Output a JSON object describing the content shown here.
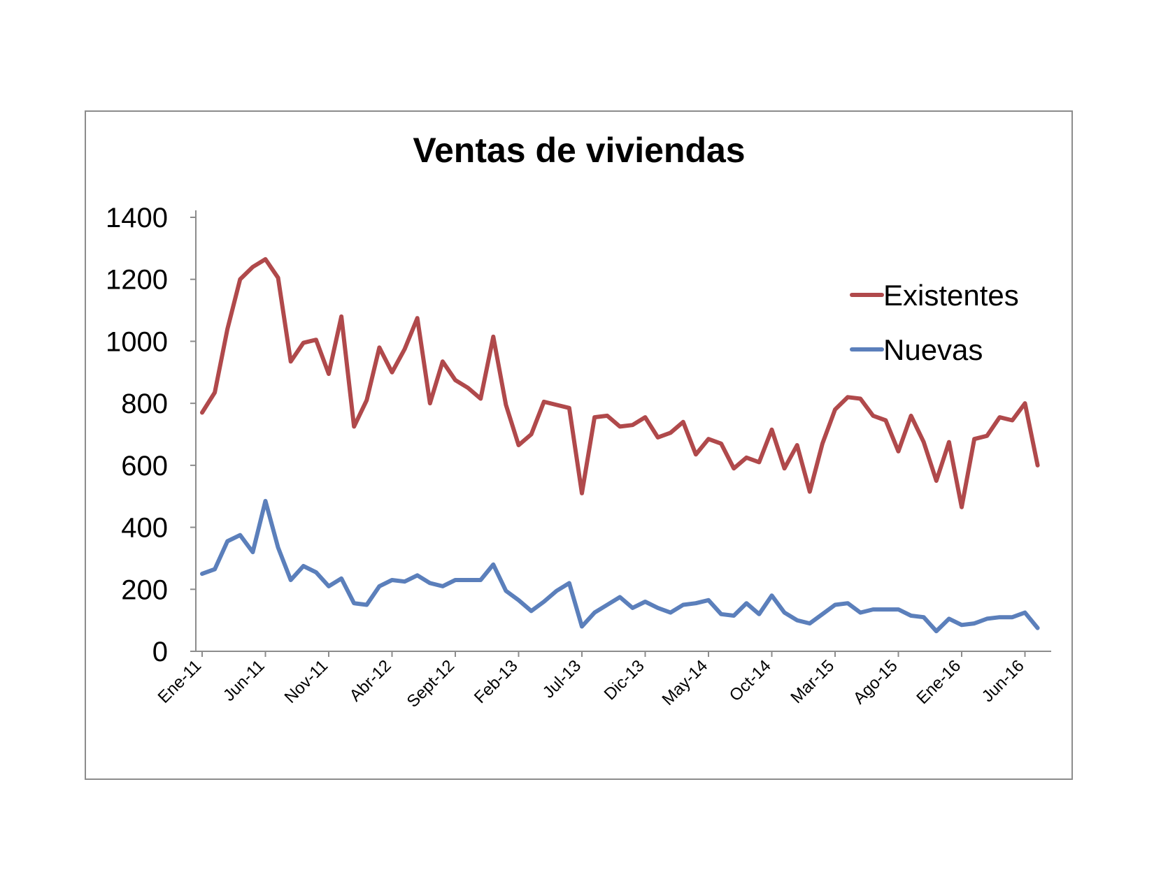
{
  "chart_data": {
    "type": "line",
    "title": "Ventas de viviendas",
    "xlabel": "",
    "ylabel": "",
    "ylim": [
      0,
      1400
    ],
    "yticks": [
      0,
      200,
      400,
      600,
      800,
      1000,
      1200,
      1400
    ],
    "xtick_labels": [
      "Ene-11",
      "Jun-11",
      "Nov-11",
      "Abr-12",
      "Sept-12",
      "Feb-13",
      "Jul-13",
      "Dic-13",
      "May-14",
      "Oct-14",
      "Mar-15",
      "Ago-15",
      "Ene-16",
      "Jun-16"
    ],
    "xtick_interval_months": 5,
    "grid": false,
    "legend_position": "right",
    "series": [
      {
        "name": "Existentes",
        "color": "#b0494b",
        "values": [
          770,
          835,
          1040,
          1200,
          1240,
          1265,
          1205,
          935,
          995,
          1005,
          895,
          1080,
          725,
          810,
          980,
          900,
          975,
          1075,
          800,
          935,
          875,
          850,
          815,
          1015,
          795,
          665,
          700,
          805,
          795,
          785,
          510,
          755,
          760,
          725,
          730,
          755,
          690,
          705,
          740,
          635,
          685,
          670,
          590,
          625,
          610,
          715,
          590,
          665,
          515,
          670,
          780,
          820,
          815,
          760,
          745,
          645,
          760,
          675,
          550,
          675,
          465,
          685,
          695,
          755,
          745,
          800,
          600
        ]
      },
      {
        "name": "Nuevas",
        "color": "#5b7fbb",
        "values": [
          250,
          265,
          355,
          375,
          320,
          485,
          335,
          230,
          275,
          255,
          210,
          235,
          155,
          150,
          210,
          230,
          225,
          245,
          220,
          210,
          230,
          230,
          230,
          280,
          195,
          165,
          130,
          160,
          195,
          220,
          80,
          125,
          150,
          175,
          140,
          160,
          140,
          125,
          150,
          155,
          165,
          120,
          115,
          155,
          120,
          180,
          125,
          100,
          90,
          120,
          150,
          155,
          125,
          135,
          135,
          135,
          115,
          110,
          65,
          105,
          85,
          90,
          105,
          110,
          110,
          125,
          75
        ]
      }
    ]
  }
}
